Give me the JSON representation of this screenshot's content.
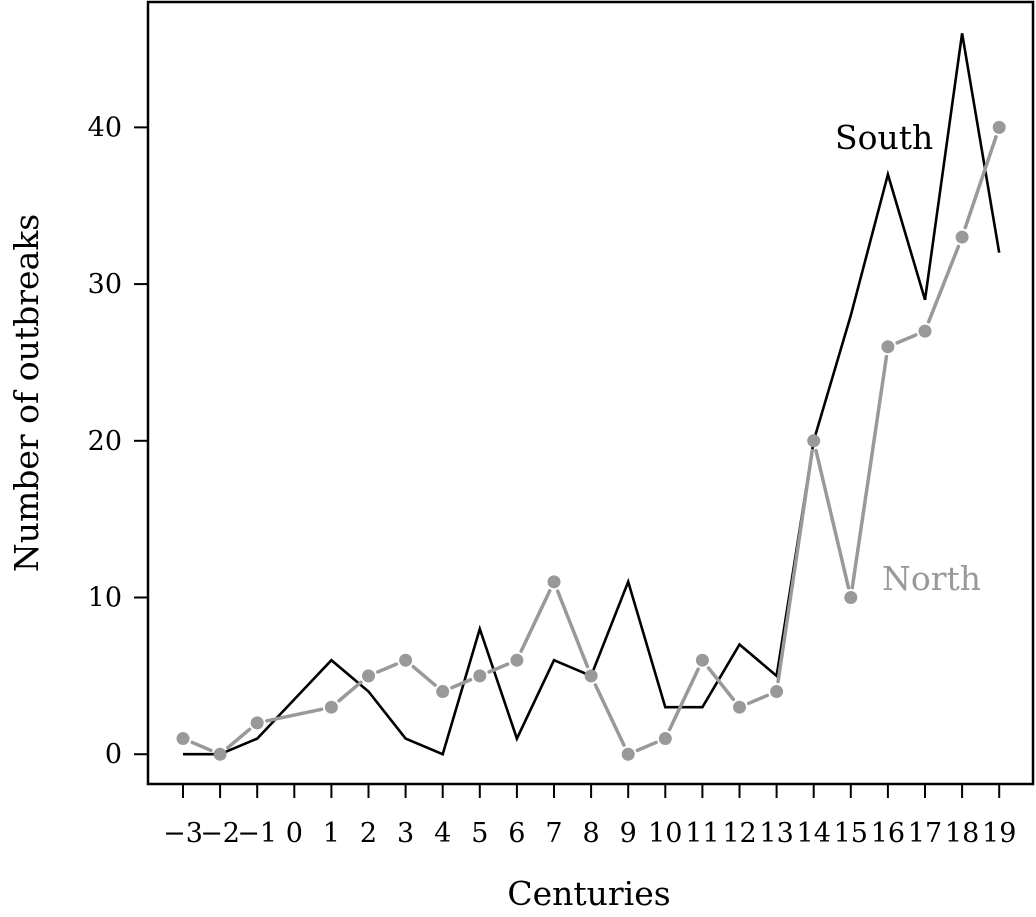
{
  "chart_data": {
    "type": "line",
    "title": "",
    "xlabel": "Centuries",
    "ylabel": "Number of outbreaks",
    "categories": [
      "−3",
      "−2",
      "−1",
      "0",
      "1",
      "2",
      "3",
      "4",
      "5",
      "6",
      "7",
      "8",
      "9",
      "10",
      "11",
      "12",
      "13",
      "14",
      "15",
      "16",
      "17",
      "18",
      "19"
    ],
    "x": [
      -3,
      -2,
      -1,
      0,
      1,
      2,
      3,
      4,
      5,
      6,
      7,
      8,
      9,
      10,
      11,
      12,
      13,
      14,
      15,
      16,
      17,
      18,
      19
    ],
    "ylim": [
      -1.9,
      48
    ],
    "yticks": [
      0,
      10,
      20,
      30,
      40
    ],
    "grid": false,
    "series": [
      {
        "name": "South",
        "color": "#000000",
        "style": "solid",
        "markers": false,
        "values": [
          0,
          0,
          1,
          3.5,
          6,
          4,
          1,
          0,
          8,
          1,
          6,
          5,
          11,
          3,
          3,
          7,
          5,
          20,
          28,
          37,
          29,
          46,
          32
        ]
      },
      {
        "name": "North",
        "color": "#999999",
        "style": "dashed-with-points",
        "markers": true,
        "values": [
          1,
          0,
          2,
          null,
          3,
          5,
          6,
          4,
          5,
          6,
          11,
          5,
          0,
          1,
          6,
          3,
          4,
          20,
          10,
          26,
          27,
          33,
          40
        ]
      }
    ]
  }
}
